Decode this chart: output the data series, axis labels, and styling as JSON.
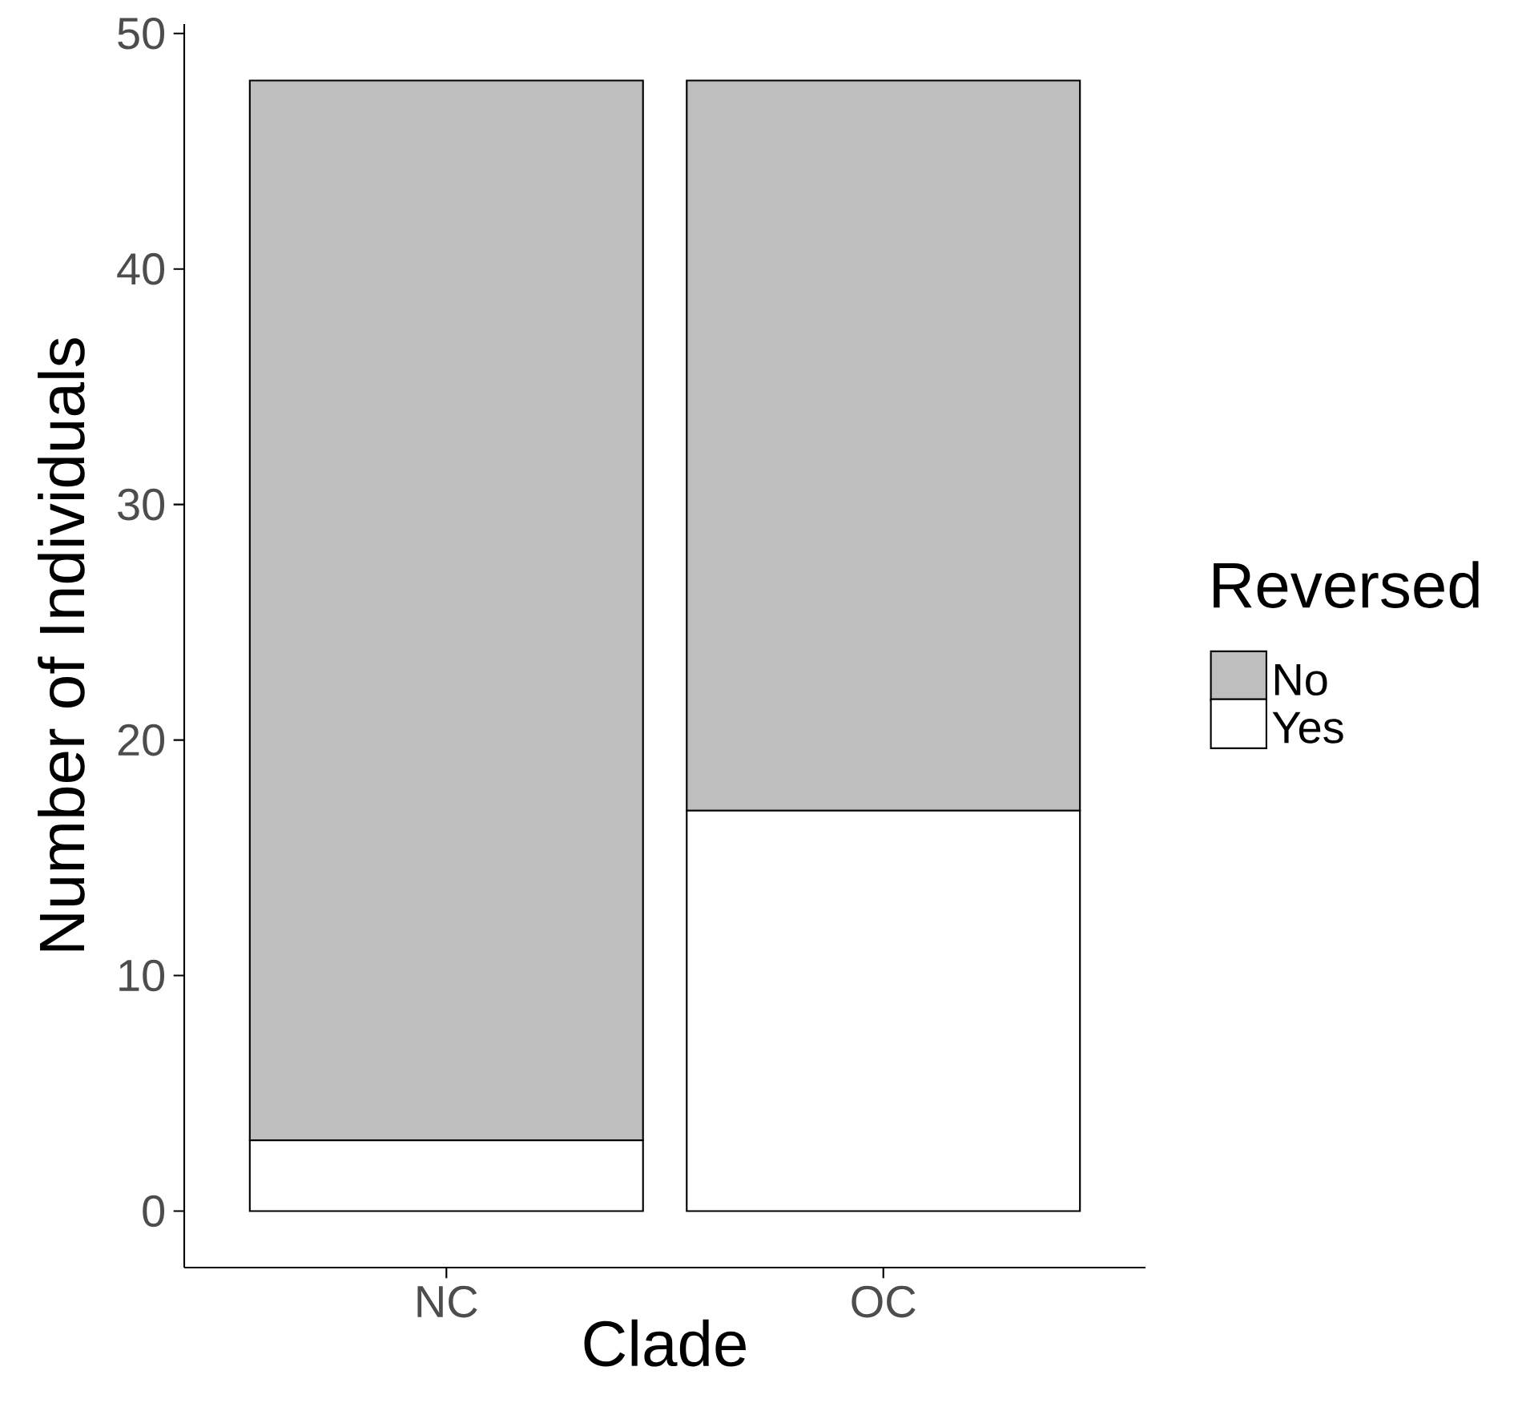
{
  "chart_data": {
    "type": "bar",
    "stacked": true,
    "xlabel": "Clade",
    "ylabel": "Number of Individuals",
    "legend_title": "Reversed",
    "categories": [
      "NC",
      "OC"
    ],
    "series": [
      {
        "name": "Yes",
        "color": "#ffffff",
        "values": [
          3,
          17
        ]
      },
      {
        "name": "No",
        "color": "#bebebe",
        "values": [
          45,
          31
        ]
      }
    ],
    "ylim": [
      -2.4,
      50.4
    ],
    "yticks": [
      0,
      10,
      20,
      30,
      40,
      50
    ],
    "legend": "right",
    "grid": false
  }
}
